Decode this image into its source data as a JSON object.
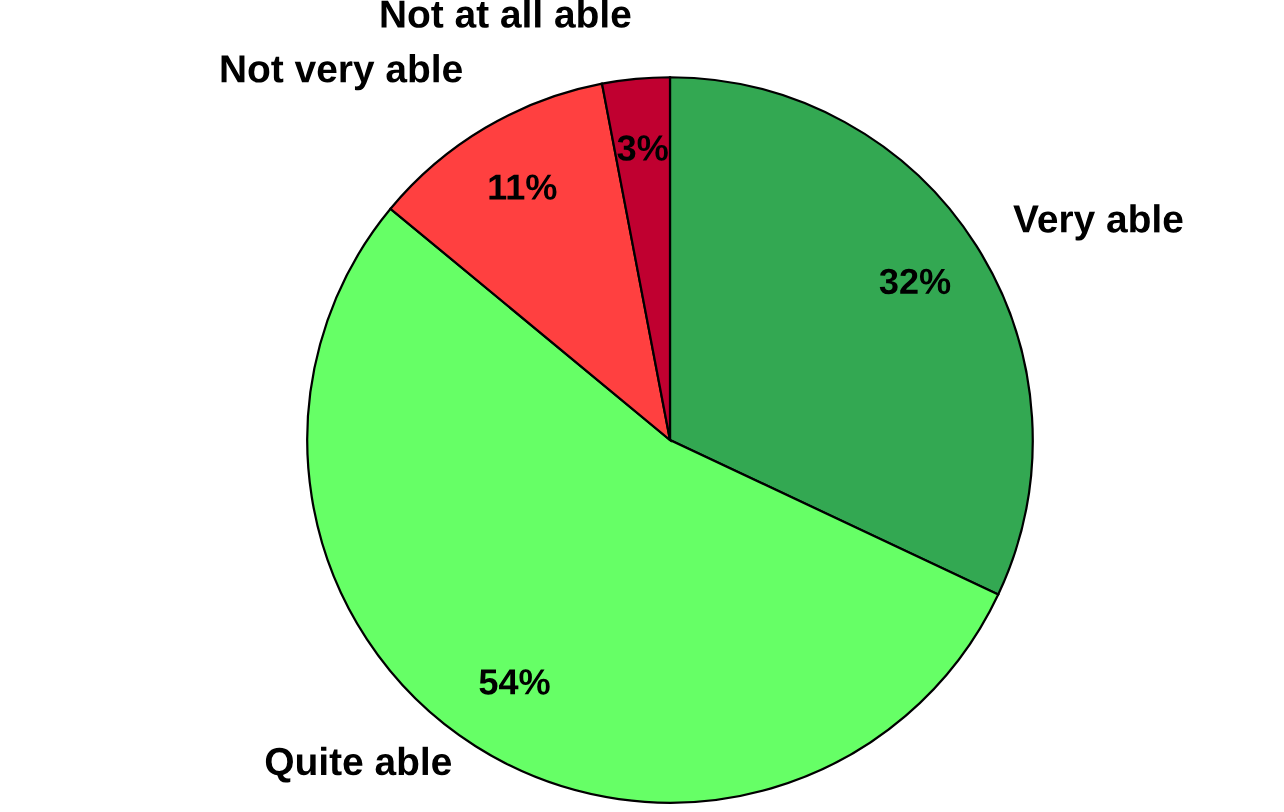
{
  "chart_data": {
    "type": "pie",
    "categories": [
      "Very able",
      "Quite able",
      "Not very able",
      "Not at all able"
    ],
    "values": [
      32,
      54,
      11,
      3
    ],
    "colors": [
      "#33a852",
      "#66ff66",
      "#ff4040",
      "#c00030"
    ],
    "value_labels": [
      "32%",
      "54%",
      "11%",
      "3%"
    ]
  }
}
